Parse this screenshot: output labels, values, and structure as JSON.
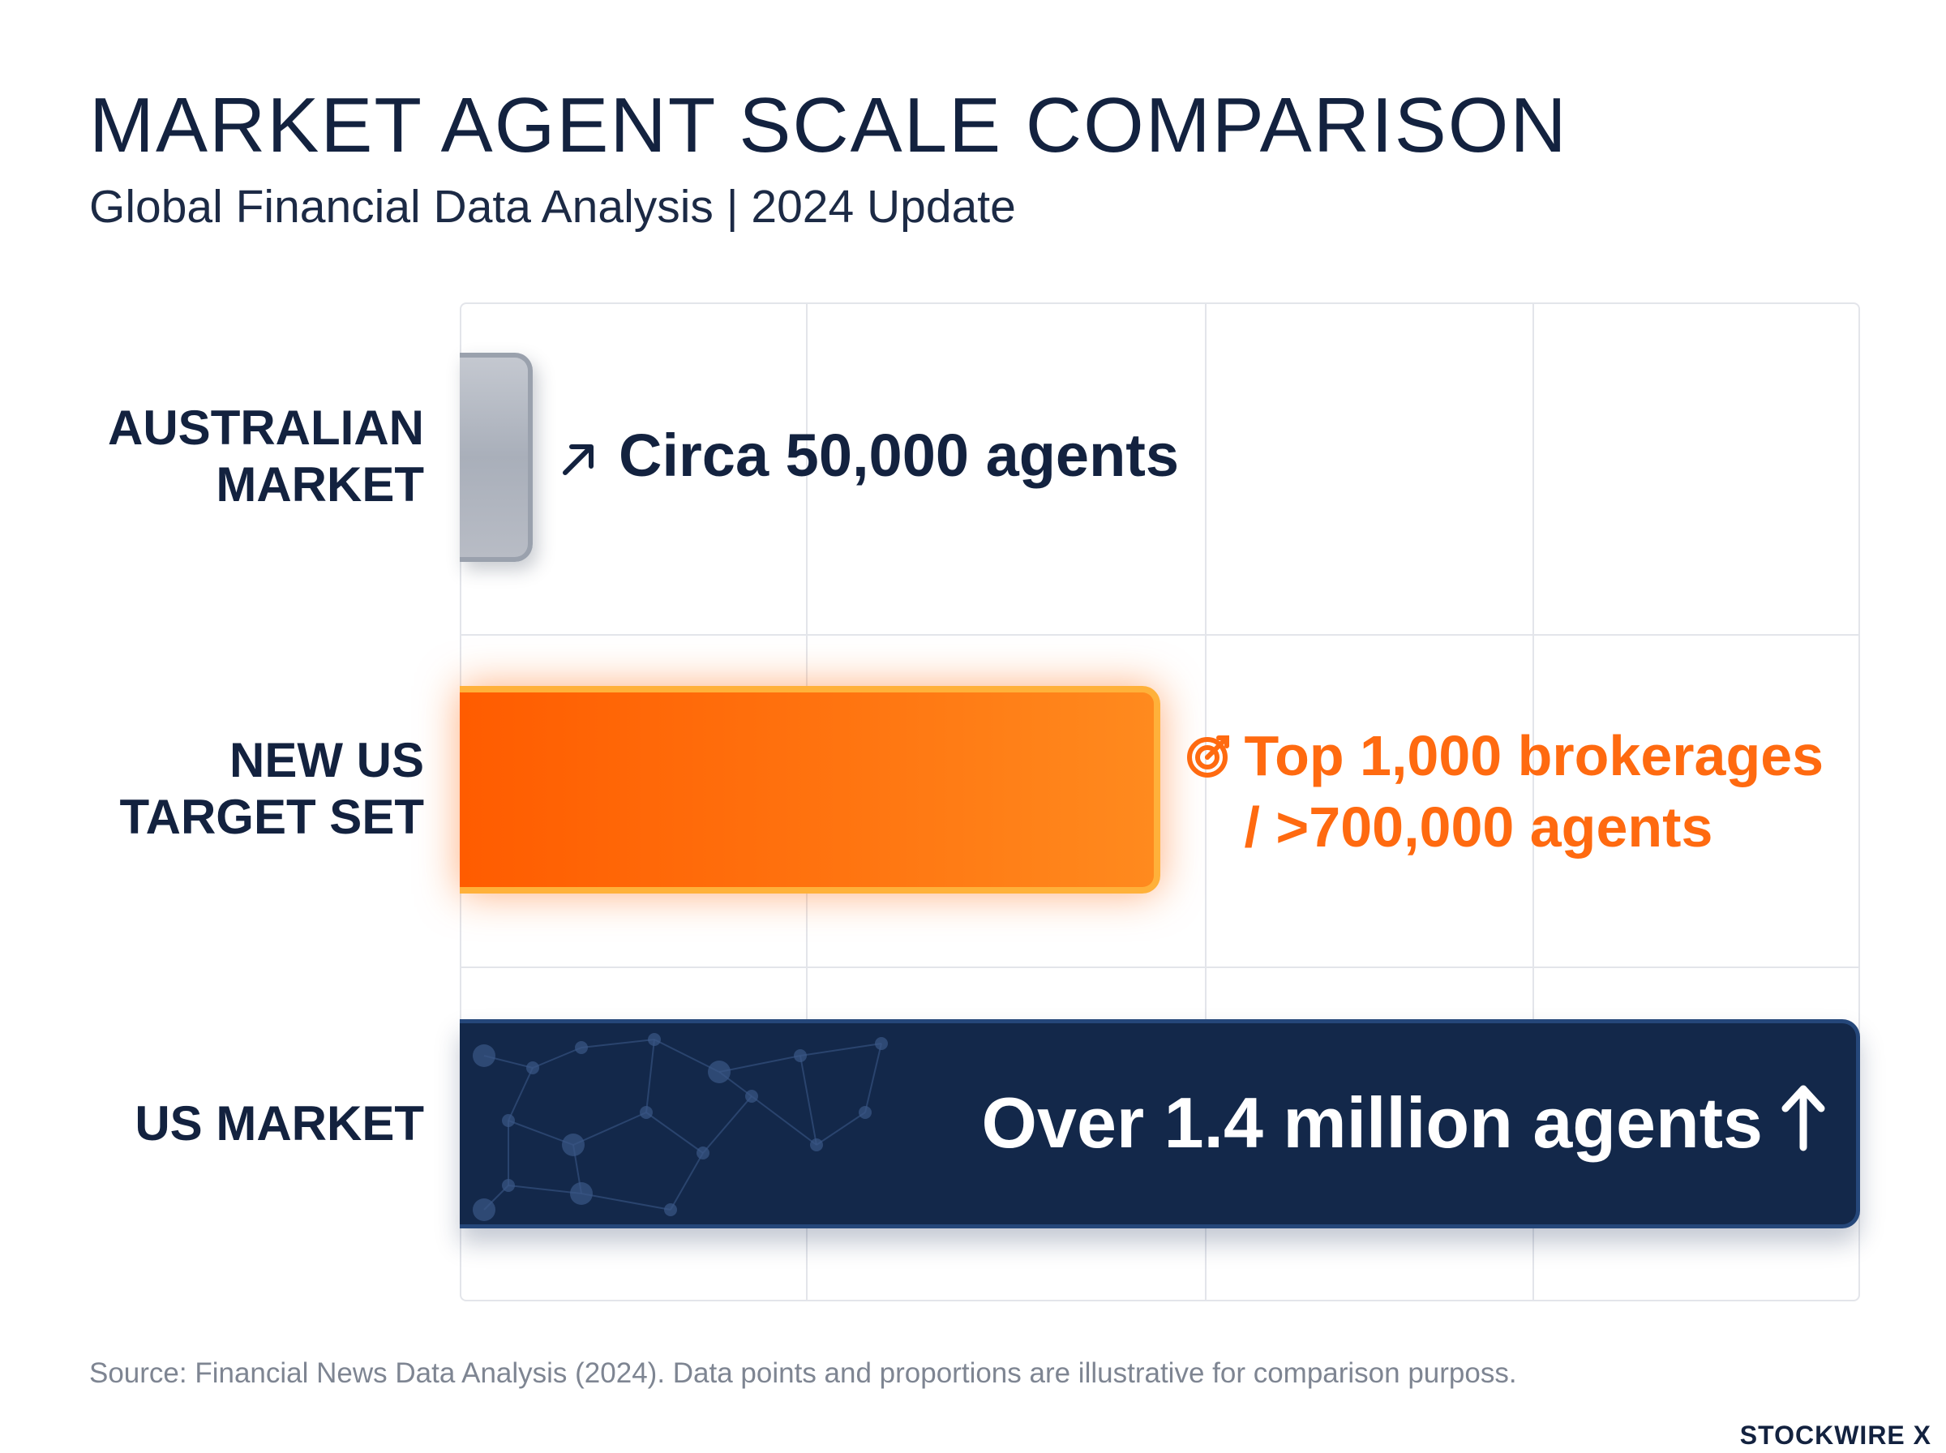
{
  "header": {
    "title": "MARKET AGENT SCALE COMPARISON",
    "subtitle": "Global Financial Data Analysis | 2024 Update"
  },
  "chart_data": {
    "type": "bar",
    "orientation": "horizontal",
    "categories": [
      "AUSTRALIAN MARKET",
      "NEW US TARGET SET",
      "US MARKET"
    ],
    "category_lines": [
      [
        "AUSTRALIAN",
        "MARKET"
      ],
      [
        "NEW US",
        "TARGET SET"
      ],
      [
        "US MARKET"
      ]
    ],
    "values": [
      50000,
      700000,
      1400000
    ],
    "data_labels": [
      [
        "Circa 50,000 agents"
      ],
      [
        "Top 1,000 brokerages",
        "/ >700,000 agents"
      ],
      [
        "Over 1.4 million agents"
      ]
    ],
    "icons": [
      "arrow-up-right-icon",
      "target-icon",
      "arrow-up-icon"
    ],
    "xlim": [
      0,
      1400000
    ],
    "grid": true,
    "legend": "none",
    "colors": [
      "#b3b8c2",
      "#ff6a10",
      "#13284a"
    ],
    "xlabel": "",
    "ylabel": ""
  },
  "footer": {
    "source": "Source: Financial News Data Analysis (2024). Data points and proportions are illustrative for comparison purposs.",
    "brand": "STOCKWIRE X"
  }
}
